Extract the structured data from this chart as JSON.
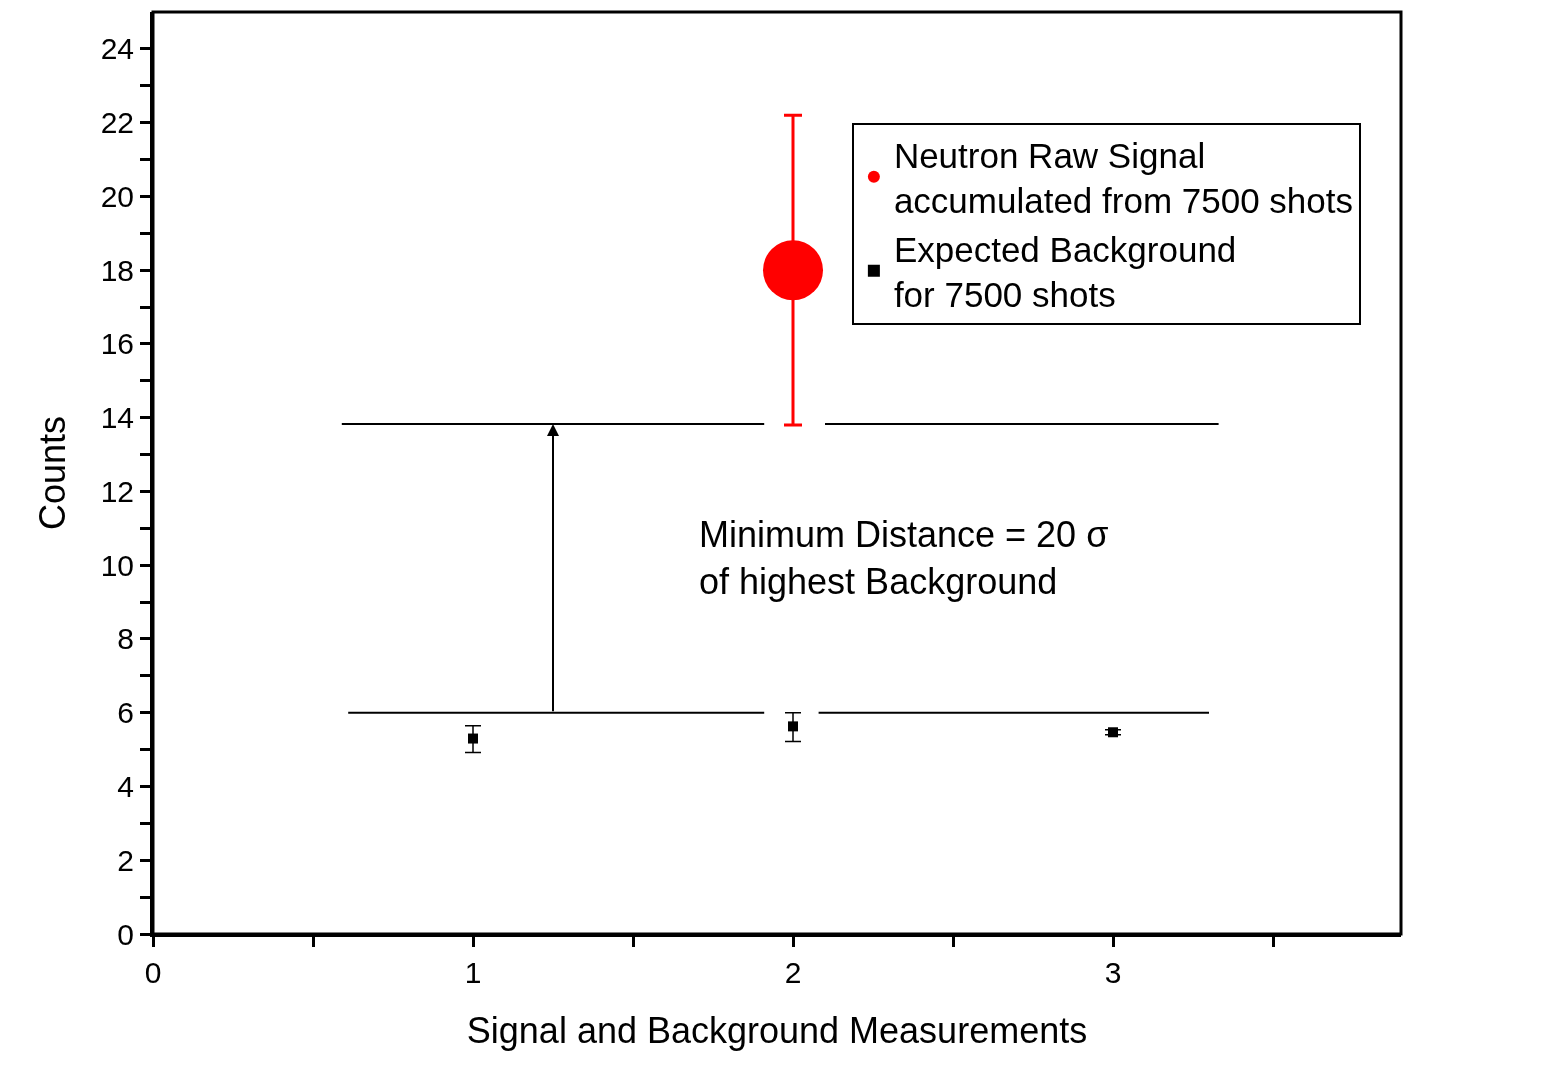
{
  "chart_data": {
    "type": "scatter",
    "xlabel": "Signal and Background Measurements",
    "ylabel": "Counts",
    "xlim": [
      0,
      3.9
    ],
    "xticks": [
      0,
      {
        "value": 0.5,
        "label": null
      },
      1,
      {
        "value": 1.5,
        "label": null
      },
      2,
      {
        "value": 2.5,
        "label": null
      },
      3,
      {
        "value": 3.5,
        "label": null
      }
    ],
    "ylim": [
      0,
      25
    ],
    "yticks": [
      0,
      {
        "value": 1,
        "label": null
      },
      2,
      {
        "value": 3,
        "label": null
      },
      4,
      {
        "value": 5,
        "label": null
      },
      6,
      {
        "value": 7,
        "label": null
      },
      8,
      {
        "value": 9,
        "label": null
      },
      10,
      {
        "value": 11,
        "label": null
      },
      12,
      {
        "value": 13,
        "label": null
      },
      14,
      {
        "value": 15,
        "label": null
      },
      16,
      {
        "value": 17,
        "label": null
      },
      18,
      {
        "value": 19,
        "label": null
      },
      20,
      {
        "value": 21,
        "label": null
      },
      22,
      {
        "value": 23,
        "label": null
      },
      24
    ],
    "legend": "top right",
    "series": [
      {
        "name": "Neutron Raw Signal\naccumulated from 7500 shots",
        "marker": "circle",
        "color": "#ff0000",
        "x": [
          2
        ],
        "values": [
          18
        ],
        "errors": [
          [
            13.8,
            22.2
          ]
        ]
      },
      {
        "name": "Expected Background\nfor 7500 shots",
        "marker": "square",
        "color": "#000000",
        "x": [
          1,
          2,
          3
        ],
        "values": [
          5.3,
          5.63,
          5.47
        ],
        "errors": [
          [
            4.92,
            5.65
          ],
          [
            5.22,
            6.0
          ],
          [
            5.4,
            5.54
          ]
        ]
      },
      {
        "type": "line",
        "line_style": "solid",
        "color": "#000000",
        "x": [
          0.61,
          1.91,
          2.0,
          2.08,
          3.3
        ],
        "values": [
          6,
          6,
          null,
          6,
          6
        ]
      },
      {
        "type": "line",
        "line_style": "solid",
        "color": "#000000",
        "x": [
          0.59,
          1.91,
          2.0,
          2.1,
          3.33
        ],
        "values": [
          13.83,
          13.83,
          null,
          13.83,
          13.83
        ]
      }
    ],
    "annotations": [
      "Minimum Distance = 20 σ\nof highest Background"
    ]
  }
}
